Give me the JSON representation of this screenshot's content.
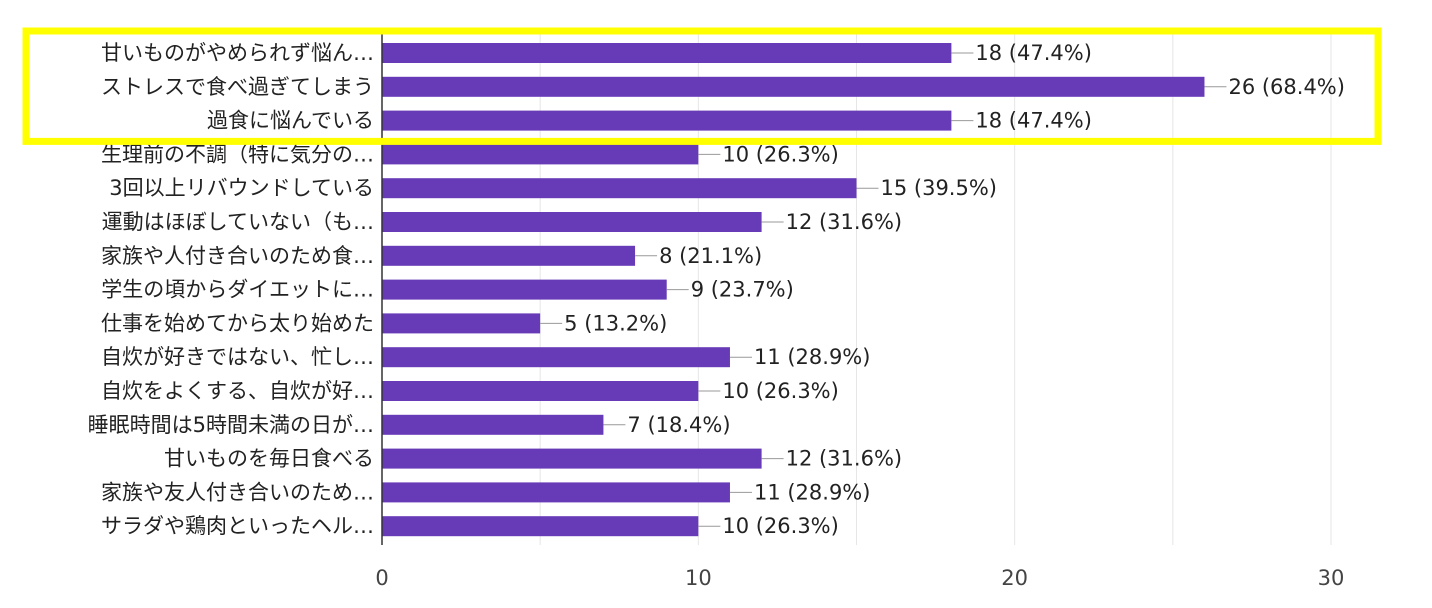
{
  "chart_data": {
    "type": "bar",
    "orientation": "horizontal",
    "categories": [
      "甘いものがやめられず悩ん…",
      "ストレスで食べ過ぎてしまう",
      "過食に悩んでいる",
      "生理前の不調（特に気分の…",
      "3回以上リバウンドしている",
      "運動はほぼしていない（も…",
      "家族や人付き合いのため食…",
      "学生の頃からダイエットに…",
      "仕事を始めてから太り始めた",
      "自炊が好きではない、忙し…",
      "自炊をよくする、自炊が好…",
      "睡眠時間は5時間未満の日が…",
      "甘いものを毎日食べる",
      "家族や友人付き合いのため…",
      "サラダや鶏肉といったヘル…"
    ],
    "values": [
      18,
      26,
      18,
      10,
      15,
      12,
      8,
      9,
      5,
      11,
      10,
      7,
      12,
      11,
      10
    ],
    "value_labels": [
      "18 (47.4%)",
      "26 (68.4%)",
      "18 (47.4%)",
      "10 (26.3%)",
      "15 (39.5%)",
      "12 (31.6%)",
      "8 (21.1%)",
      "9 (23.7%)",
      "5 (13.2%)",
      "11 (28.9%)",
      "10 (26.3%)",
      "7 (18.4%)",
      "12 (31.6%)",
      "11 (28.9%)",
      "10 (26.3%)"
    ],
    "xlim": [
      0,
      30
    ],
    "xticks": [
      "0",
      "10",
      "20",
      "30"
    ],
    "grid": true,
    "highlight_rows": [
      0,
      1,
      2
    ],
    "colors": {
      "bar": "#673ab7",
      "highlight": "#ffff00",
      "grid": "#e6e6e6",
      "axis": "#333333",
      "leader": "#999999"
    }
  }
}
